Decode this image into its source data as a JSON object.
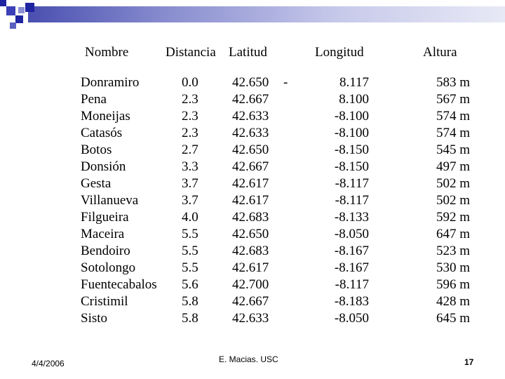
{
  "headers": {
    "nombre": "Nombre",
    "distancia": "Distancia",
    "latitud": "Latitud",
    "longitud": "Longitud",
    "altura": "Altura"
  },
  "rows": [
    {
      "nombre": "Donramiro",
      "distancia": "0.0",
      "latitud": "42.650",
      "dash": "-",
      "longitud": "8.117",
      "altura": "583 m"
    },
    {
      "nombre": "Pena",
      "distancia": "2.3",
      "latitud": "42.667",
      "dash": "",
      "longitud": "8.100",
      "altura": "567 m"
    },
    {
      "nombre": "Moneijas",
      "distancia": "2.3",
      "latitud": "42.633",
      "dash": "",
      "longitud": "-8.100",
      "altura": "574 m"
    },
    {
      "nombre": "Catasós",
      "distancia": "2.3",
      "latitud": "42.633",
      "dash": "",
      "longitud": "-8.100",
      "altura": "574 m"
    },
    {
      "nombre": "Botos",
      "distancia": "2.7",
      "latitud": "42.650",
      "dash": "",
      "longitud": "-8.150",
      "altura": "545 m"
    },
    {
      "nombre": "Donsión",
      "distancia": "3.3",
      "latitud": "42.667",
      "dash": "",
      "longitud": "-8.150",
      "altura": "497 m"
    },
    {
      "nombre": "Gesta",
      "distancia": "3.7",
      "latitud": "42.617",
      "dash": "",
      "longitud": "-8.117",
      "altura": "502 m"
    },
    {
      "nombre": "Villanueva",
      "distancia": "3.7",
      "latitud": "42.617",
      "dash": "",
      "longitud": "-8.117",
      "altura": "502 m"
    },
    {
      "nombre": "Filgueira",
      "distancia": "4.0",
      "latitud": "42.683",
      "dash": "",
      "longitud": "-8.133",
      "altura": "592 m"
    },
    {
      "nombre": "Maceira",
      "distancia": "5.5",
      "latitud": "42.650",
      "dash": "",
      "longitud": "-8.050",
      "altura": "647 m"
    },
    {
      "nombre": "Bendoiro",
      "distancia": "5.5",
      "latitud": "42.683",
      "dash": "",
      "longitud": "-8.167",
      "altura": "523 m"
    },
    {
      "nombre": "Sotolongo",
      "distancia": "5.5",
      "latitud": "42.617",
      "dash": "",
      "longitud": "-8.167",
      "altura": "530 m"
    },
    {
      "nombre": "Fuentecabalos",
      "distancia": "5.6",
      "latitud": "42.700",
      "dash": "",
      "longitud": "-8.117",
      "altura": "596 m"
    },
    {
      "nombre": "Cristimil",
      "distancia": "5.8",
      "latitud": "42.667",
      "dash": "",
      "longitud": "-8.183",
      "altura": "428 m"
    },
    {
      "nombre": "Sisto",
      "distancia": "5.8",
      "latitud": "42.633",
      "dash": "",
      "longitud": "-8.050",
      "altura": "645 m"
    }
  ],
  "footer": {
    "date": "4/4/2006",
    "author": "E. Macias. USC",
    "page": "17"
  },
  "colors": {
    "band_dark": "#4a4fb0",
    "band_light": "#e8e9f6",
    "square_blue": "#1f24a0"
  }
}
